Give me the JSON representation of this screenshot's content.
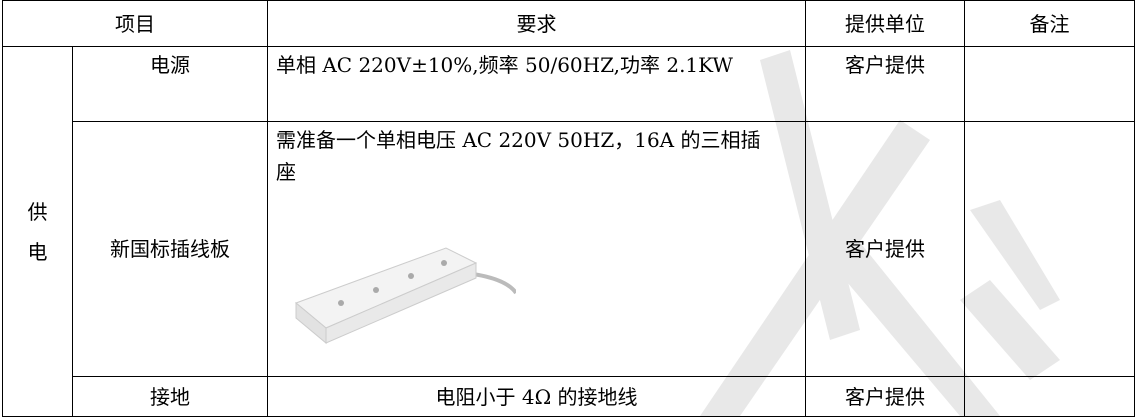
{
  "table": {
    "header": [
      "项目",
      "要求",
      "提供单位",
      "备注"
    ],
    "group": "供电",
    "rows": [
      {
        "item": "电源",
        "requirement": "单相 AC 220V±10%,频率 50/60HZ,功率 2.1KW",
        "provider": "客户提供"
      },
      {
        "item": "新国标插线板",
        "requirement": "需准备一个单相电压 AC 220V 50HZ，16A 的三相插座",
        "provider": "客户提供"
      },
      {
        "item": "接地",
        "requirement": "电阻小于 4Ω 的接地线",
        "provider": "客户提供"
      }
    ]
  }
}
